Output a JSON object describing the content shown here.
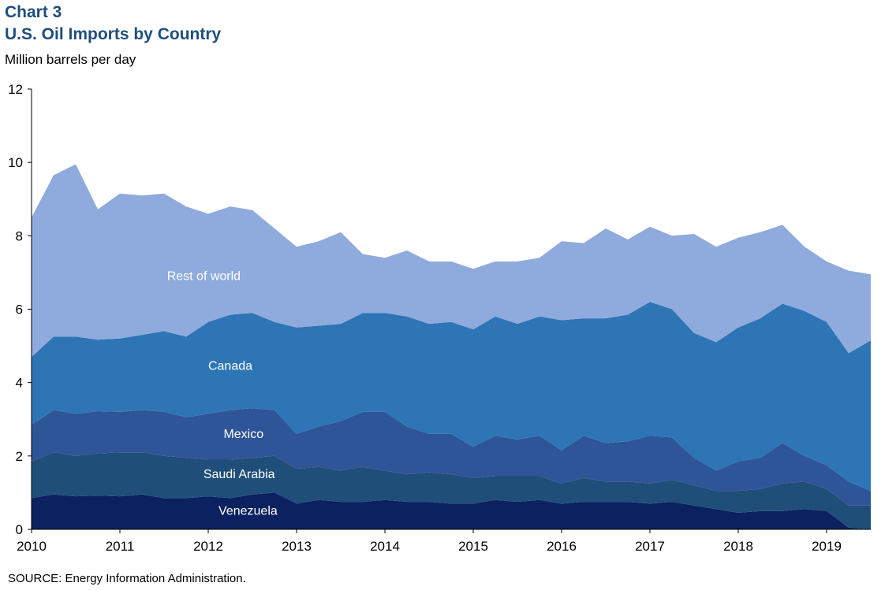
{
  "header": {
    "chart_number": "Chart 3",
    "title": "U.S. Oil Imports  by Country"
  },
  "units_label": "Million barrels per day",
  "source": "SOURCE:  Energy Information Administration.",
  "colors": {
    "Venezuela": "#0b2160",
    "Saudi Arabia": "#1f4e78",
    "Mexico": "#2e5597",
    "Canada": "#2e75b6",
    "Rest of world": "#8faadc"
  },
  "chart_data": {
    "type": "area",
    "stacked": true,
    "x": [
      2010.0,
      2010.25,
      2010.5,
      2010.75,
      2011.0,
      2011.25,
      2011.5,
      2011.75,
      2012.0,
      2012.25,
      2012.5,
      2012.75,
      2013.0,
      2013.25,
      2013.5,
      2013.75,
      2014.0,
      2014.25,
      2014.5,
      2014.75,
      2015.0,
      2015.25,
      2015.5,
      2015.75,
      2016.0,
      2016.25,
      2016.5,
      2016.75,
      2017.0,
      2017.25,
      2017.5,
      2017.75,
      2018.0,
      2018.25,
      2018.5,
      2018.75,
      2019.0,
      2019.25,
      2019.5
    ],
    "xlim": [
      2010,
      2019.5
    ],
    "x_ticks": [
      "2010",
      "2011",
      "2012",
      "2013",
      "2014",
      "2015",
      "2016",
      "2017",
      "2018",
      "2019"
    ],
    "ylim": [
      0,
      12
    ],
    "y_ticks": [
      0,
      2,
      4,
      6,
      8,
      10,
      12
    ],
    "series": [
      {
        "name": "Venezuela",
        "values": [
          0.85,
          0.95,
          0.9,
          0.92,
          0.9,
          0.95,
          0.85,
          0.85,
          0.9,
          0.85,
          0.95,
          1.0,
          0.7,
          0.8,
          0.75,
          0.75,
          0.8,
          0.75,
          0.75,
          0.7,
          0.7,
          0.8,
          0.75,
          0.8,
          0.7,
          0.75,
          0.75,
          0.75,
          0.7,
          0.75,
          0.65,
          0.55,
          0.45,
          0.5,
          0.5,
          0.55,
          0.5,
          0.05,
          0.0
        ]
      },
      {
        "name": "Saudi Arabia",
        "values": [
          1.0,
          1.15,
          1.1,
          1.15,
          1.2,
          1.15,
          1.15,
          1.1,
          1.0,
          1.05,
          1.0,
          1.0,
          0.95,
          0.9,
          0.85,
          0.95,
          0.8,
          0.75,
          0.8,
          0.8,
          0.7,
          0.65,
          0.7,
          0.65,
          0.55,
          0.65,
          0.55,
          0.55,
          0.55,
          0.6,
          0.55,
          0.5,
          0.6,
          0.6,
          0.75,
          0.75,
          0.6,
          0.6,
          0.65
        ]
      },
      {
        "name": "Mexico",
        "values": [
          1.0,
          1.15,
          1.15,
          1.15,
          1.1,
          1.15,
          1.2,
          1.1,
          1.25,
          1.35,
          1.35,
          1.25,
          0.95,
          1.1,
          1.35,
          1.5,
          1.6,
          1.3,
          1.05,
          1.1,
          0.85,
          1.1,
          1.0,
          1.1,
          0.9,
          1.15,
          1.05,
          1.1,
          1.3,
          1.15,
          0.75,
          0.55,
          0.8,
          0.85,
          1.1,
          0.7,
          0.65,
          0.65,
          0.4
        ]
      },
      {
        "name": "Canada",
        "values": [
          1.85,
          2.0,
          2.1,
          1.95,
          2.0,
          2.05,
          2.2,
          2.2,
          2.5,
          2.6,
          2.6,
          2.4,
          2.9,
          2.75,
          2.65,
          2.7,
          2.7,
          3.0,
          3.0,
          3.05,
          3.2,
          3.25,
          3.15,
          3.25,
          3.55,
          3.2,
          3.4,
          3.45,
          3.65,
          3.5,
          3.4,
          3.5,
          3.65,
          3.8,
          3.8,
          3.95,
          3.9,
          3.5,
          4.1
        ]
      },
      {
        "name": "Rest of world",
        "values": [
          3.8,
          4.4,
          4.7,
          3.55,
          3.95,
          3.8,
          3.75,
          3.55,
          2.95,
          2.95,
          2.8,
          2.55,
          2.2,
          2.3,
          2.5,
          1.6,
          1.5,
          1.8,
          1.7,
          1.65,
          1.65,
          1.5,
          1.7,
          1.6,
          2.15,
          2.05,
          2.45,
          2.05,
          2.05,
          2.0,
          2.7,
          2.6,
          2.45,
          2.35,
          2.15,
          1.75,
          1.65,
          2.25,
          1.8
        ]
      }
    ],
    "series_labels": [
      {
        "name": "Rest of world",
        "x": 2011.95,
        "y": 6.9
      },
      {
        "name": "Canada",
        "x": 2012.25,
        "y": 4.45
      },
      {
        "name": "Mexico",
        "x": 2012.4,
        "y": 2.6
      },
      {
        "name": "Saudi Arabia",
        "x": 2012.35,
        "y": 1.5
      },
      {
        "name": "Venezuela",
        "x": 2012.45,
        "y": 0.5
      }
    ]
  }
}
